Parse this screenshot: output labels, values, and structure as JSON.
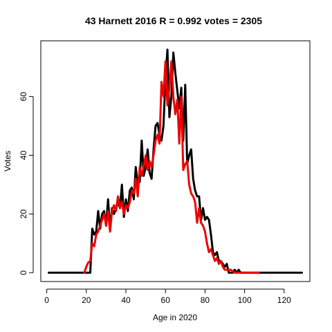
{
  "chart_data": {
    "type": "line",
    "title": "43 Harnett 2016 R = 0.992 votes = 2305",
    "xlabel": "Age in 2020",
    "ylabel": "Votes",
    "xlim": [
      -3,
      133
    ],
    "ylim": [
      -3,
      79
    ],
    "xticks": [
      0,
      20,
      40,
      60,
      80,
      100,
      120
    ],
    "yticks": [
      0,
      20,
      40,
      60
    ],
    "grid": false,
    "legend": "none",
    "series": [
      {
        "color": "#000000",
        "x": [
          1,
          2,
          3,
          4,
          5,
          6,
          7,
          8,
          9,
          10,
          11,
          12,
          13,
          14,
          15,
          16,
          17,
          18,
          19,
          20,
          21,
          22,
          23,
          24,
          25,
          26,
          27,
          28,
          29,
          30,
          31,
          32,
          33,
          34,
          35,
          36,
          37,
          38,
          39,
          40,
          41,
          42,
          43,
          44,
          45,
          46,
          47,
          48,
          49,
          50,
          51,
          52,
          53,
          54,
          55,
          56,
          57,
          58,
          59,
          60,
          61,
          62,
          63,
          64,
          65,
          66,
          67,
          68,
          69,
          70,
          71,
          72,
          73,
          74,
          75,
          76,
          77,
          78,
          79,
          80,
          81,
          82,
          83,
          84,
          85,
          86,
          87,
          88,
          89,
          90,
          91,
          92,
          93,
          94,
          95,
          96,
          97,
          98,
          99,
          100,
          101,
          102,
          103,
          104,
          105,
          106,
          107,
          108,
          109,
          110,
          111,
          112,
          113,
          114,
          115,
          116,
          117,
          118,
          119,
          120,
          121,
          122,
          123,
          124,
          125,
          126,
          127,
          128,
          129
        ],
        "y": [
          0,
          0,
          0,
          0,
          0,
          0,
          0,
          0,
          0,
          0,
          0,
          0,
          0,
          0,
          0,
          0,
          0,
          0,
          0,
          0,
          0,
          0,
          15,
          13,
          14,
          21,
          15,
          20,
          21,
          16,
          25,
          15,
          22,
          20,
          22,
          24,
          22,
          30,
          19,
          25,
          21,
          28,
          29,
          25,
          36,
          30,
          31,
          45,
          33,
          36,
          42,
          34,
          32,
          42,
          50,
          51,
          47,
          45,
          50,
          66,
          76,
          53,
          60,
          75,
          68,
          62,
          56,
          63,
          45,
          64,
          37,
          40,
          42,
          32,
          28,
          26,
          26,
          18,
          22,
          18,
          19,
          18,
          13,
          7,
          6,
          7,
          4,
          4,
          3,
          2,
          3,
          0,
          0,
          0,
          1,
          0,
          1,
          0,
          0,
          0,
          0,
          0,
          0,
          0,
          0,
          0,
          0,
          0,
          0,
          0,
          0,
          0,
          0,
          0,
          0,
          0,
          0,
          0,
          0,
          0,
          0,
          0,
          0,
          0,
          0,
          0,
          0,
          0,
          0
        ]
      },
      {
        "color": "#ee0000",
        "x": [
          19,
          20,
          21,
          22,
          23,
          24,
          25,
          26,
          27,
          28,
          29,
          30,
          31,
          32,
          33,
          34,
          35,
          36,
          37,
          38,
          39,
          40,
          41,
          42,
          43,
          44,
          45,
          46,
          47,
          48,
          49,
          50,
          51,
          52,
          53,
          54,
          55,
          56,
          57,
          58,
          59,
          60,
          61,
          62,
          63,
          64,
          65,
          66,
          67,
          68,
          69,
          70,
          71,
          72,
          73,
          74,
          75,
          76,
          77,
          78,
          79,
          80,
          81,
          82,
          83,
          84,
          85,
          86,
          87,
          88,
          89,
          90,
          91,
          92,
          93,
          94,
          95,
          96,
          97,
          98,
          99,
          100,
          101,
          102,
          103,
          104,
          105,
          106,
          107
        ],
        "y": [
          0,
          2,
          3.5,
          4,
          10,
          9,
          13,
          14,
          16,
          18,
          20,
          16,
          21,
          14,
          21,
          23,
          21,
          26,
          22,
          24,
          20,
          23,
          22,
          24,
          28,
          27,
          32,
          26,
          36,
          33,
          36,
          40,
          35,
          38,
          36,
          40,
          45,
          47,
          44,
          65,
          60,
          72,
          57,
          63,
          72,
          60,
          54,
          59,
          44,
          60,
          35,
          37,
          38,
          30,
          27,
          26,
          24,
          17,
          22,
          17,
          16,
          14,
          10,
          7,
          8,
          6,
          4,
          5,
          3,
          4,
          2,
          1,
          1,
          1,
          1,
          0.5,
          0,
          0,
          0,
          0,
          0,
          0,
          0,
          0,
          0,
          0,
          0,
          0,
          0
        ]
      }
    ]
  }
}
